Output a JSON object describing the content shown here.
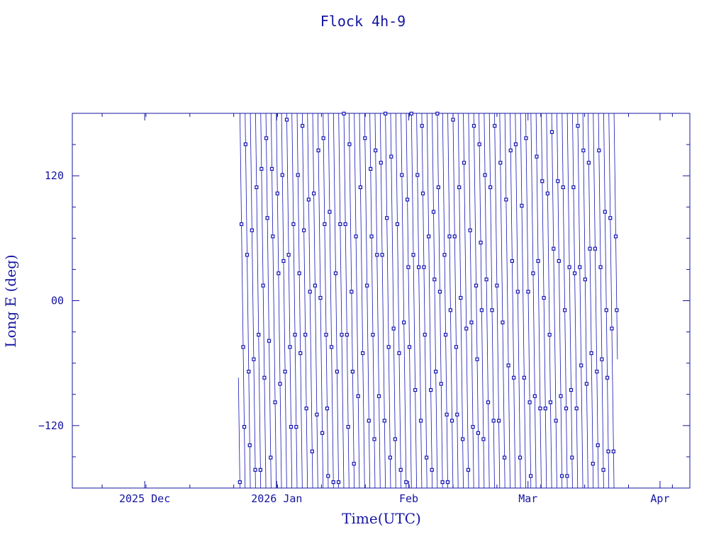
{
  "chart_data": {
    "type": "line",
    "title": "Flock 4h-9",
    "xlabel": "Time(UTC)",
    "ylabel": "Long E (deg)",
    "x_range": [
      "2025-11-14",
      "2026-04-08"
    ],
    "ylim": [
      -180,
      180
    ],
    "x_ticks": [
      {
        "date": "2025-12-01",
        "label": "2025 Dec"
      },
      {
        "date": "2026-01-01",
        "label": "2026 Jan"
      },
      {
        "date": "2026-02-01",
        "label": "Feb"
      },
      {
        "date": "2026-03-01",
        "label": "Mar"
      },
      {
        "date": "2026-04-01",
        "label": "Apr"
      }
    ],
    "y_ticks": [
      {
        "value": -120,
        "label": "−120"
      },
      {
        "value": 0,
        "label": "00"
      },
      {
        "value": 120,
        "label": "120"
      }
    ],
    "grid": false,
    "series": [
      {
        "color": "#1414b4",
        "data_start": "2025-12-23",
        "data_end": "2026-03-22",
        "wrap_period_days": 1.22,
        "start_longitude": -74,
        "marker": "square"
      }
    ]
  },
  "colors": {
    "axis": "#1414a0",
    "series": "#1414b4"
  }
}
